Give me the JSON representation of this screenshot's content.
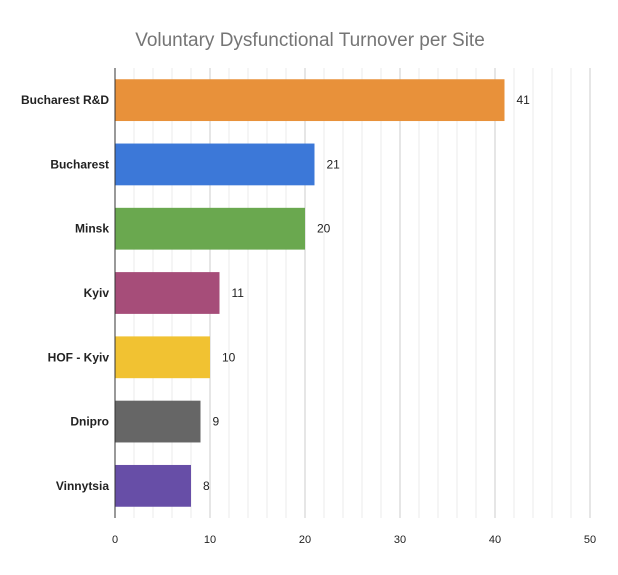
{
  "chart_data": {
    "type": "bar",
    "orientation": "horizontal",
    "title": "Voluntary Dysfunctional Turnover per Site",
    "xlabel": "",
    "ylabel": "",
    "categories": [
      "Bucharest R&D",
      "Bucharest",
      "Minsk",
      "Kyiv",
      "HOF - Kyiv",
      "Dnipro",
      "Vinnytsia"
    ],
    "values": [
      41,
      21,
      20,
      11,
      10,
      9,
      8
    ],
    "data_labels": [
      "41",
      "21",
      "20",
      "11",
      "10",
      "9",
      "8"
    ],
    "colors": [
      "#e8913a",
      "#3c78d8",
      "#6aa84f",
      "#a64d79",
      "#f1c232",
      "#666666",
      "#674ea7"
    ],
    "xlim": [
      0,
      50
    ],
    "xticks": [
      0,
      10,
      20,
      30,
      40,
      50
    ],
    "xtick_labels": [
      "0",
      "10",
      "20",
      "30",
      "40",
      "50"
    ],
    "minor_step": 2,
    "grid": true,
    "legend": "none"
  }
}
